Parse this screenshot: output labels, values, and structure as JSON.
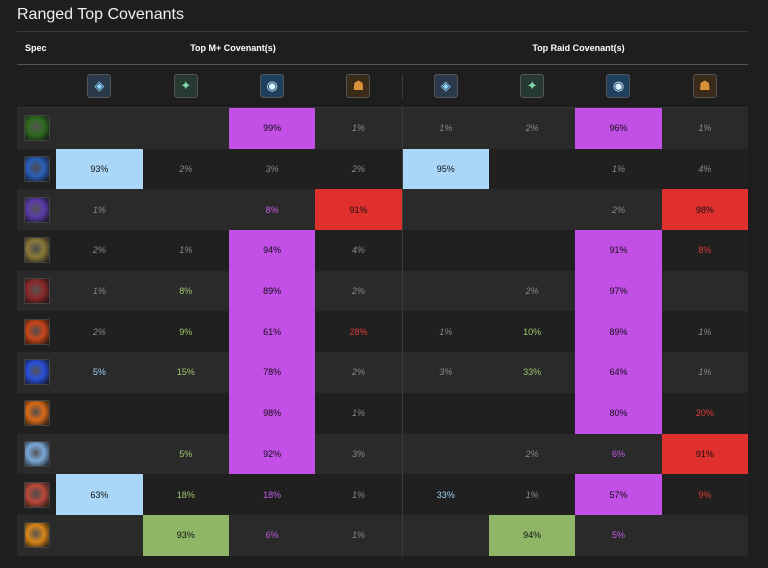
{
  "title": "Ranged Top Covenants",
  "header": {
    "spec": "Spec",
    "mplus": "Top M+ Covenant(s)",
    "raid": "Top Raid Covenant(s)"
  },
  "covenant_icons": [
    "kyrian-icon",
    "necrolord-icon",
    "venthyr-icon",
    "night-fae-icon"
  ],
  "colors": {
    "kyrian": "#aad7f7",
    "nightfae": "#8fb566",
    "venthyr": "#c24fe6",
    "necrolord": "#e0302e"
  },
  "rows": [
    {
      "spec_icon": "affliction-spec-icon",
      "color": "#2f6b1f",
      "cells": [
        {
          "v": "",
          "s": ""
        },
        {
          "v": "",
          "s": ""
        },
        {
          "v": "99%",
          "s": "bg-venthyr"
        },
        {
          "v": "1%",
          "s": "t-gray"
        },
        {
          "v": "1%",
          "s": "t-gray"
        },
        {
          "v": "2%",
          "s": "t-gray"
        },
        {
          "v": "96%",
          "s": "bg-venthyr"
        },
        {
          "v": "1%",
          "s": "t-gray"
        }
      ]
    },
    {
      "spec_icon": "elemental-spec-icon",
      "color": "#2a5fb8",
      "cells": [
        {
          "v": "93%",
          "s": "bg-kyrian"
        },
        {
          "v": "2%",
          "s": "t-gray"
        },
        {
          "v": "3%",
          "s": "t-gray"
        },
        {
          "v": "2%",
          "s": "t-gray"
        },
        {
          "v": "95%",
          "s": "bg-kyrian"
        },
        {
          "v": "",
          "s": ""
        },
        {
          "v": "1%",
          "s": "t-gray"
        },
        {
          "v": "4%",
          "s": "t-gray"
        }
      ]
    },
    {
      "spec_icon": "arcane-spec-icon",
      "color": "#5a3ba8",
      "cells": [
        {
          "v": "1%",
          "s": "t-gray"
        },
        {
          "v": "",
          "s": ""
        },
        {
          "v": "8%",
          "s": "t-venthyr"
        },
        {
          "v": "91%",
          "s": "bg-nl"
        },
        {
          "v": "",
          "s": ""
        },
        {
          "v": "",
          "s": ""
        },
        {
          "v": "2%",
          "s": "t-gray"
        },
        {
          "v": "98%",
          "s": "bg-nl"
        }
      ]
    },
    {
      "spec_icon": "marksmanship-spec-icon",
      "color": "#8a7a3a",
      "cells": [
        {
          "v": "2%",
          "s": "t-gray"
        },
        {
          "v": "1%",
          "s": "t-gray"
        },
        {
          "v": "94%",
          "s": "bg-venthyr"
        },
        {
          "v": "4%",
          "s": "t-gray"
        },
        {
          "v": "",
          "s": ""
        },
        {
          "v": "",
          "s": ""
        },
        {
          "v": "91%",
          "s": "bg-venthyr"
        },
        {
          "v": "8%",
          "s": "t-nl"
        }
      ]
    },
    {
      "spec_icon": "demonology-spec-icon",
      "color": "#8a2a2a",
      "cells": [
        {
          "v": "1%",
          "s": "t-gray"
        },
        {
          "v": "8%",
          "s": "t-nf"
        },
        {
          "v": "89%",
          "s": "bg-venthyr"
        },
        {
          "v": "2%",
          "s": "t-gray"
        },
        {
          "v": "",
          "s": ""
        },
        {
          "v": "2%",
          "s": "t-gray"
        },
        {
          "v": "97%",
          "s": "bg-venthyr"
        },
        {
          "v": "",
          "s": ""
        }
      ]
    },
    {
      "spec_icon": "destruction-spec-icon",
      "color": "#c8471a",
      "cells": [
        {
          "v": "2%",
          "s": "t-gray"
        },
        {
          "v": "9%",
          "s": "t-nf"
        },
        {
          "v": "61%",
          "s": "bg-venthyr"
        },
        {
          "v": "28%",
          "s": "t-nl"
        },
        {
          "v": "1%",
          "s": "t-gray"
        },
        {
          "v": "10%",
          "s": "t-nf"
        },
        {
          "v": "89%",
          "s": "bg-venthyr"
        },
        {
          "v": "1%",
          "s": "t-gray"
        }
      ]
    },
    {
      "spec_icon": "lightning-spec-icon",
      "color": "#2a4fd8",
      "cells": [
        {
          "v": "5%",
          "s": "t-kyrian"
        },
        {
          "v": "15%",
          "s": "t-nf"
        },
        {
          "v": "78%",
          "s": "bg-venthyr"
        },
        {
          "v": "2%",
          "s": "t-gray"
        },
        {
          "v": "3%",
          "s": "t-gray"
        },
        {
          "v": "33%",
          "s": "t-nf"
        },
        {
          "v": "64%",
          "s": "bg-venthyr"
        },
        {
          "v": "1%",
          "s": "t-gray"
        }
      ]
    },
    {
      "spec_icon": "fire-spec-icon",
      "color": "#d86a1a",
      "cells": [
        {
          "v": "",
          "s": ""
        },
        {
          "v": "",
          "s": ""
        },
        {
          "v": "98%",
          "s": "bg-venthyr"
        },
        {
          "v": "1%",
          "s": "t-gray"
        },
        {
          "v": "",
          "s": ""
        },
        {
          "v": "",
          "s": ""
        },
        {
          "v": "80%",
          "s": "bg-venthyr"
        },
        {
          "v": "20%",
          "s": "t-nl"
        }
      ]
    },
    {
      "spec_icon": "frost-spec-icon",
      "color": "#7aa8d8",
      "cells": [
        {
          "v": "",
          "s": ""
        },
        {
          "v": "5%",
          "s": "t-nf"
        },
        {
          "v": "92%",
          "s": "bg-venthyr"
        },
        {
          "v": "3%",
          "s": "t-gray"
        },
        {
          "v": "",
          "s": ""
        },
        {
          "v": "2%",
          "s": "t-gray"
        },
        {
          "v": "6%",
          "s": "t-venthyr"
        },
        {
          "v": "91%",
          "s": "bg-nl"
        }
      ]
    },
    {
      "spec_icon": "beast-mastery-spec-icon",
      "color": "#b84a3a",
      "cells": [
        {
          "v": "63%",
          "s": "bg-kyrian"
        },
        {
          "v": "18%",
          "s": "t-nf"
        },
        {
          "v": "18%",
          "s": "t-venthyr"
        },
        {
          "v": "1%",
          "s": "t-gray"
        },
        {
          "v": "33%",
          "s": "t-kyrian"
        },
        {
          "v": "1%",
          "s": "t-gray"
        },
        {
          "v": "57%",
          "s": "bg-venthyr"
        },
        {
          "v": "9%",
          "s": "t-nl"
        }
      ]
    },
    {
      "spec_icon": "balance-spec-icon",
      "color": "#d8861a",
      "cells": [
        {
          "v": "",
          "s": ""
        },
        {
          "v": "93%",
          "s": "bg-nf"
        },
        {
          "v": "6%",
          "s": "t-venthyr"
        },
        {
          "v": "1%",
          "s": "t-gray"
        },
        {
          "v": "",
          "s": ""
        },
        {
          "v": "94%",
          "s": "bg-nf"
        },
        {
          "v": "5%",
          "s": "t-venthyr"
        },
        {
          "v": "",
          "s": ""
        }
      ]
    }
  ]
}
